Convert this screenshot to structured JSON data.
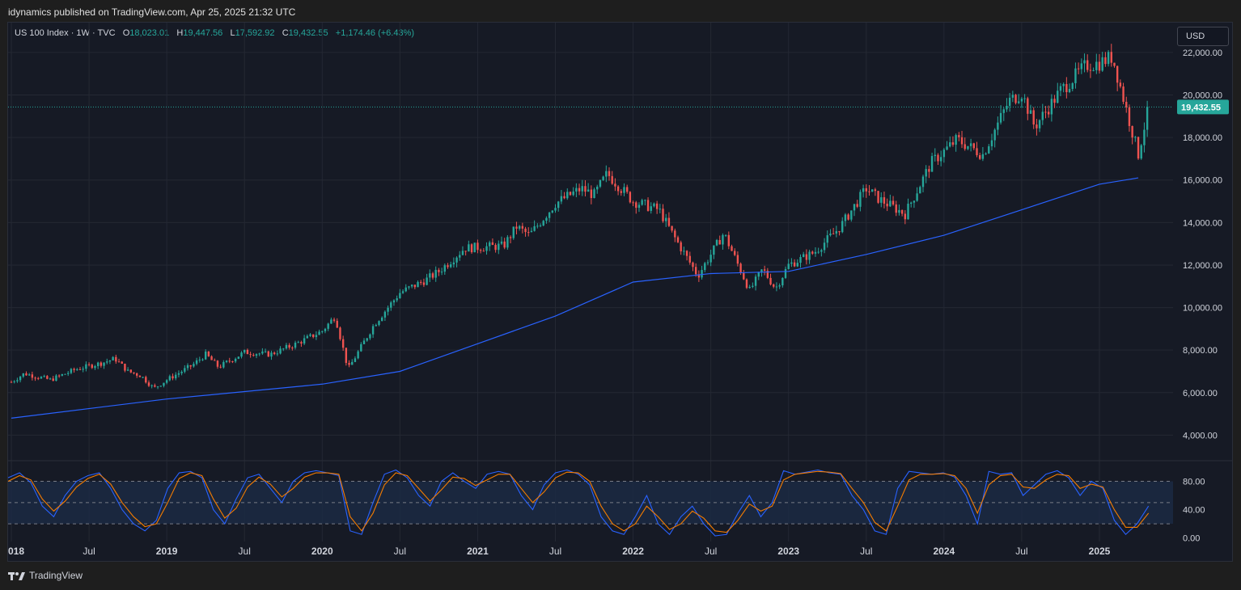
{
  "header": {
    "publisher": "idynamics published on TradingView.com, Apr 25, 2025 21:32 UTC"
  },
  "legend": {
    "symbol": "US 100 Index · 1W · TVC",
    "o_label": "O",
    "o": "18,023.01",
    "h_label": "H",
    "h": "19,447.56",
    "l_label": "L",
    "l": "17,592.92",
    "c_label": "C",
    "c": "19,432.55",
    "change": "+1,174.46 (+6.43%)"
  },
  "currency_button": "USD",
  "footer": {
    "brand": "TradingView"
  },
  "colors": {
    "up": "#26a69a",
    "down": "#ef5350",
    "ma": "#2962ff",
    "k": "#2962ff",
    "d": "#f57c00",
    "bg": "#161a25"
  },
  "chart_data": [
    {
      "type": "candlestick",
      "title": "US 100 Index · 1W · TVC",
      "ylim": [
        2800,
        23400
      ],
      "y_ticks": [
        4000,
        6000,
        8000,
        10000,
        12000,
        14000,
        16000,
        18000,
        20000,
        22000
      ],
      "y_tick_labels": [
        "4,000.00",
        "6,000.00",
        "8,000.00",
        "10,000.00",
        "12,000.00",
        "14,000.00",
        "16,000.00",
        "18,000.00",
        "20,000.00",
        "22,000.00"
      ],
      "last_price": 19432.55,
      "last_price_label": "19,432.55",
      "x_tick_labels": [
        "018",
        "Jul",
        "2019",
        "Jul",
        "2020",
        "Jul",
        "2021",
        "Jul",
        "2022",
        "Jul",
        "2023",
        "Jul",
        "2024",
        "Jul",
        "2025"
      ],
      "closes_approx": [
        [
          "2018-01",
          6500
        ],
        [
          "2018-02",
          6900
        ],
        [
          "2018-04",
          6600
        ],
        [
          "2018-06",
          7100
        ],
        [
          "2018-08",
          7400
        ],
        [
          "2018-09",
          7600
        ],
        [
          "2018-10",
          7000
        ],
        [
          "2018-11",
          6800
        ],
        [
          "2018-12",
          6200
        ],
        [
          "2019-01",
          6600
        ],
        [
          "2019-03",
          7300
        ],
        [
          "2019-04",
          7800
        ],
        [
          "2019-05",
          7200
        ],
        [
          "2019-07",
          7900
        ],
        [
          "2019-09",
          7800
        ],
        [
          "2019-11",
          8300
        ],
        [
          "2020-01",
          8900
        ],
        [
          "2020-02",
          9600
        ],
        [
          "2020-03",
          7100
        ],
        [
          "2020-05",
          9200
        ],
        [
          "2020-07",
          10700
        ],
        [
          "2020-09",
          11300
        ],
        [
          "2020-10",
          11700
        ],
        [
          "2020-12",
          12800
        ],
        [
          "2021-03",
          12900
        ],
        [
          "2021-04",
          13800
        ],
        [
          "2021-05",
          13400
        ],
        [
          "2021-07",
          14900
        ],
        [
          "2021-09",
          15600
        ],
        [
          "2021-10",
          15300
        ],
        [
          "2021-11",
          16300
        ],
        [
          "2022-01",
          15000
        ],
        [
          "2022-03",
          14600
        ],
        [
          "2022-04",
          13500
        ],
        [
          "2022-06",
          11500
        ],
        [
          "2022-08",
          13500
        ],
        [
          "2022-10",
          10800
        ],
        [
          "2022-11",
          11800
        ],
        [
          "2022-12",
          10900
        ],
        [
          "2023-01",
          12000
        ],
        [
          "2023-03",
          12600
        ],
        [
          "2023-05",
          13800
        ],
        [
          "2023-07",
          15600
        ],
        [
          "2023-08",
          15100
        ],
        [
          "2023-10",
          14400
        ],
        [
          "2023-12",
          16800
        ],
        [
          "2024-02",
          17900
        ],
        [
          "2024-04",
          17200
        ],
        [
          "2024-06",
          19700
        ],
        [
          "2024-07",
          20100
        ],
        [
          "2024-08",
          18500
        ],
        [
          "2024-10",
          20200
        ],
        [
          "2024-12",
          21400
        ],
        [
          "2025-01",
          21500
        ],
        [
          "2025-02",
          21800
        ],
        [
          "2025-03",
          19500
        ],
        [
          "2025-04",
          17200
        ],
        [
          "2025-04-25",
          19432.55
        ]
      ],
      "moving_average_approx": [
        [
          "2018-01",
          4800
        ],
        [
          "2019-01",
          5700
        ],
        [
          "2020-01",
          6400
        ],
        [
          "2020-07",
          7000
        ],
        [
          "2021-01",
          8300
        ],
        [
          "2021-07",
          9600
        ],
        [
          "2022-01",
          11200
        ],
        [
          "2022-07",
          11600
        ],
        [
          "2023-01",
          11700
        ],
        [
          "2023-07",
          12500
        ],
        [
          "2024-01",
          13400
        ],
        [
          "2024-07",
          14600
        ],
        [
          "2025-01",
          15800
        ],
        [
          "2025-04",
          16100
        ]
      ]
    },
    {
      "type": "line",
      "indicator": "stochastic",
      "ylim": [
        -5,
        108
      ],
      "y_ticks": [
        0,
        40,
        80
      ],
      "y_tick_labels": [
        "0.00",
        "40.00",
        "80.00"
      ],
      "band": [
        20,
        80
      ],
      "midline": 50,
      "series": [
        {
          "values": [
            85,
            92,
            78,
            45,
            30,
            60,
            80,
            88,
            92,
            70,
            40,
            20,
            10,
            25,
            70,
            92,
            94,
            85,
            40,
            20,
            55,
            85,
            90,
            70,
            50,
            80,
            92,
            95,
            92,
            88,
            10,
            5,
            50,
            90,
            96,
            85,
            60,
            45,
            80,
            92,
            80,
            70,
            90,
            94,
            90,
            60,
            40,
            75,
            92,
            96,
            90,
            75,
            30,
            10,
            5,
            30,
            60,
            20,
            5,
            30,
            45,
            20,
            3,
            5,
            35,
            60,
            30,
            50,
            95,
            90,
            93,
            96,
            92,
            90,
            60,
            40,
            10,
            5,
            70,
            94,
            92,
            90,
            92,
            86,
            60,
            20,
            94,
            90,
            92,
            60,
            75,
            90,
            95,
            85,
            60,
            80,
            70,
            25,
            5,
            20,
            45
          ]
        },
        {
          "values": [
            80,
            88,
            82,
            55,
            38,
            52,
            72,
            84,
            90,
            76,
            50,
            30,
            16,
            20,
            50,
            84,
            92,
            88,
            55,
            28,
            42,
            72,
            86,
            76,
            58,
            70,
            86,
            92,
            92,
            90,
            30,
            10,
            35,
            75,
            92,
            88,
            70,
            52,
            68,
            86,
            84,
            74,
            82,
            90,
            90,
            70,
            50,
            65,
            85,
            93,
            92,
            80,
            45,
            20,
            10,
            20,
            45,
            30,
            12,
            20,
            38,
            28,
            10,
            8,
            25,
            48,
            38,
            45,
            82,
            90,
            92,
            94,
            93,
            91,
            70,
            50,
            22,
            10,
            45,
            82,
            90,
            90,
            91,
            88,
            70,
            35,
            75,
            88,
            90,
            72,
            70,
            82,
            90,
            88,
            70,
            76,
            72,
            40,
            15,
            15,
            35
          ]
        }
      ]
    }
  ]
}
